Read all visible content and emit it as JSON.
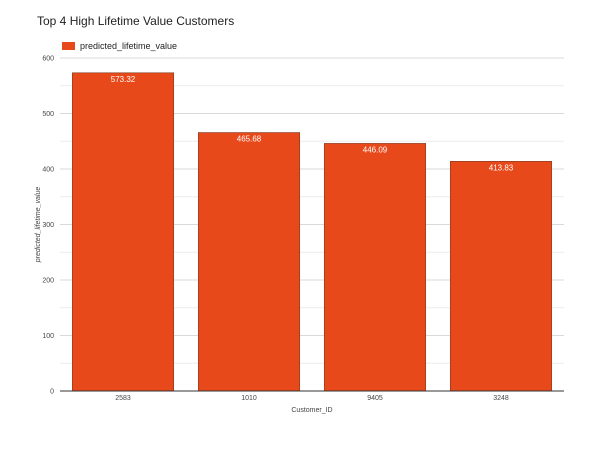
{
  "chart_data": {
    "type": "bar",
    "title": "Top 4 High Lifetime Value Customers",
    "xlabel": "Customer_ID",
    "ylabel": "predicted_lifetime_value",
    "categories": [
      "2583",
      "1010",
      "9405",
      "3248"
    ],
    "series": [
      {
        "name": "predicted_lifetime_value",
        "values": [
          573.32,
          465.68,
          446.09,
          413.83
        ],
        "data_labels": [
          "573.32",
          "465.68",
          "446.09",
          "413.83"
        ],
        "color": "#e8491a"
      }
    ],
    "ylim": [
      0,
      600
    ],
    "yticks": [
      0,
      100,
      200,
      300,
      400,
      500,
      600
    ],
    "ytick_labels": [
      "0",
      "100",
      "200",
      "300",
      "400",
      "500",
      "600"
    ],
    "grid": true,
    "legend_position": "top-left"
  }
}
